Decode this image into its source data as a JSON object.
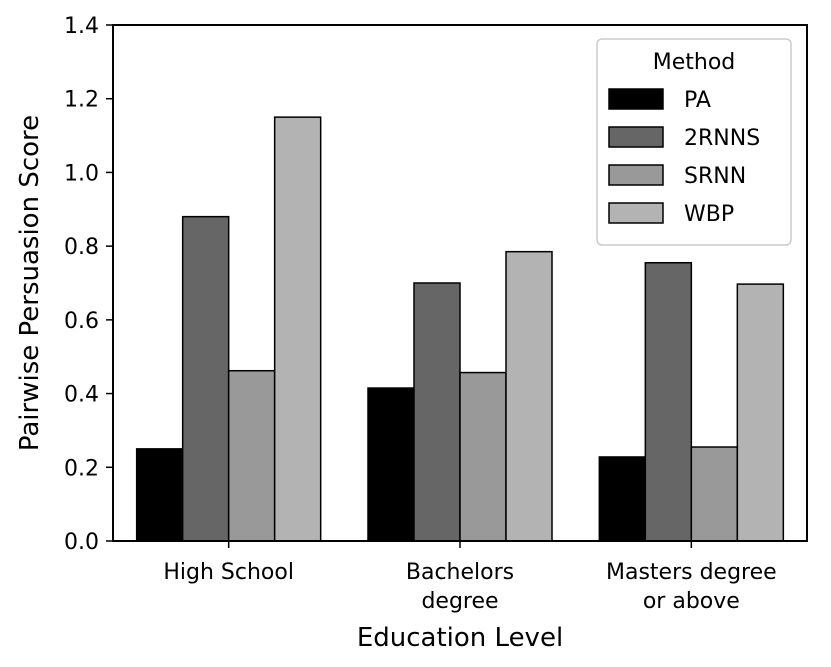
{
  "chart_data": {
    "type": "bar",
    "categories": [
      "High School",
      "Bachelors degree",
      "Masters degree or above"
    ],
    "category_tick_lines": [
      [
        "High School"
      ],
      [
        "Bachelors",
        "degree"
      ],
      [
        "Masters degree",
        "or above"
      ]
    ],
    "series": [
      {
        "name": "PA",
        "values": [
          0.25,
          0.415,
          0.228
        ],
        "color": "#000000"
      },
      {
        "name": "2RNNS",
        "values": [
          0.88,
          0.7,
          0.755
        ],
        "color": "#666666"
      },
      {
        "name": "SRNN",
        "values": [
          0.462,
          0.457,
          0.255
        ],
        "color": "#999999"
      },
      {
        "name": "WBP",
        "values": [
          1.15,
          0.785,
          0.697
        ],
        "color": "#b3b3b3"
      }
    ],
    "xlabel": "Education Level",
    "ylabel": "Pairwise Persuasion Score",
    "ylim": [
      0.0,
      1.4
    ],
    "yticks": [
      "0.0",
      "0.2",
      "0.4",
      "0.6",
      "0.8",
      "1.0",
      "1.2",
      "1.4"
    ],
    "legend": {
      "title": "Method",
      "position": "top-right"
    },
    "grid": false
  }
}
